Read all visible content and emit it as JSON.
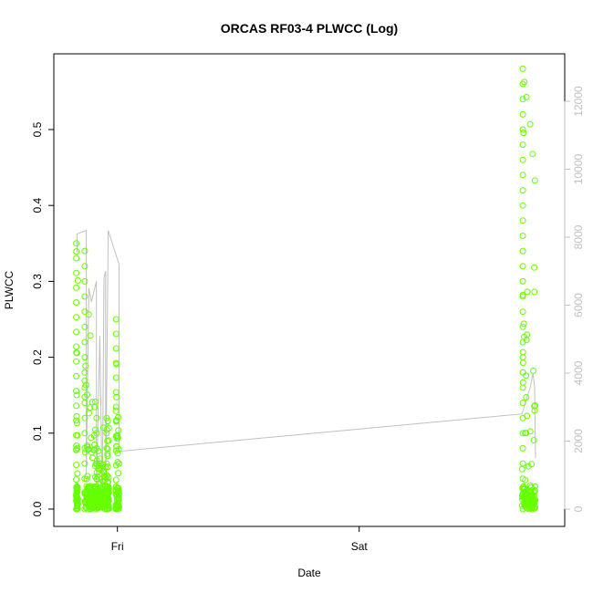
{
  "chart_data": {
    "type": "scatter",
    "title": "ORCAS RF03-4 PLWCC (Log)",
    "xlabel": "Date",
    "ylabel": "PLWCC",
    "x_axis": {
      "type": "date",
      "ticks": [
        "Fri",
        "Sat"
      ]
    },
    "y_axis_left": {
      "range": [
        0,
        0.6
      ],
      "ticks": [
        0.0,
        0.1,
        0.2,
        0.3,
        0.4,
        0.5
      ],
      "labels": [
        "0.0",
        "0.1",
        "0.2",
        "0.3",
        "0.4",
        "0.5"
      ]
    },
    "y_axis_right": {
      "range": [
        0,
        13300
      ],
      "ticks": [
        0,
        2000,
        4000,
        6000,
        8000,
        10000,
        12000
      ],
      "labels": [
        "0",
        "2000",
        "4000",
        "6000",
        "8000",
        "10000",
        "12000"
      ],
      "color": "#c0c0c0"
    },
    "grid": false,
    "series": [
      {
        "style": "points",
        "color": "#66ff00",
        "axis": "left",
        "segments": [
          {
            "x_start": "Thu 19:55",
            "x_end": "Thu 20:05",
            "y_max": 0.35
          },
          {
            "x_start": "Thu 20:45",
            "x_end": "Thu 21:50",
            "y_max": 0.34
          },
          {
            "x_start": "Thu 21:50",
            "x_end": "Thu 22:50",
            "y_max": 0.12
          },
          {
            "x_start": "Thu 22:55",
            "x_end": "Thu 23:10",
            "y_max": 0.12
          },
          {
            "x_start": "Thu 23:50",
            "x_end": "Fri 00:10",
            "y_max": 0.25
          },
          {
            "x_start": "Sat 16:10",
            "x_end": "Sat 17:30",
            "y_max": 0.58
          }
        ]
      },
      {
        "style": "line",
        "color": "#c0c0c0",
        "axis": "right",
        "points": [
          [
            "Thu 20:00",
            7550
          ],
          [
            "Thu 20:00",
            8100
          ],
          [
            "Thu 20:55",
            8200
          ],
          [
            "Thu 20:55",
            1000
          ],
          [
            "Thu 21:10",
            6500
          ],
          [
            "Thu 21:25",
            6100
          ],
          [
            "Thu 21:55",
            6700
          ],
          [
            "Thu 21:55",
            400
          ],
          [
            "Thu 22:15",
            5100
          ],
          [
            "Thu 22:30",
            200
          ],
          [
            "Thu 22:40",
            6800
          ],
          [
            "Thu 22:50",
            7000
          ],
          [
            "Thu 22:50",
            300
          ],
          [
            "Thu 23:05",
            8200
          ],
          [
            "Fri 00:10",
            7200
          ],
          [
            "Fri 00:10",
            1700
          ],
          [
            "Sat 16:10",
            2800
          ],
          [
            "Sat 16:40",
            3300
          ],
          [
            "Sat 17:00",
            3600
          ],
          [
            "Sat 17:15",
            4000
          ],
          [
            "Sat 17:25",
            3600
          ],
          [
            "Sat 17:30",
            1500
          ]
        ]
      }
    ]
  }
}
